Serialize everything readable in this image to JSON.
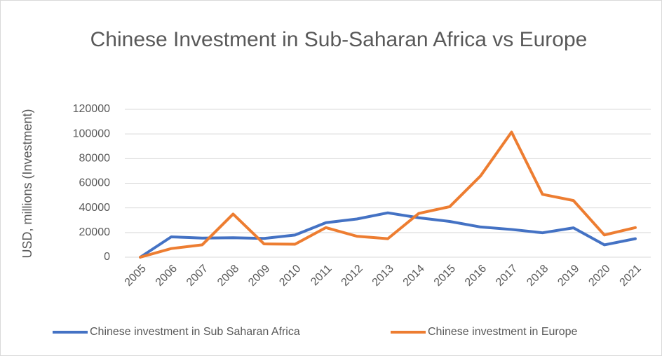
{
  "chart_data": {
    "type": "line",
    "title": "Chinese Investment in Sub-Saharan Africa vs Europe",
    "y_label": "USD, millions (Investment)",
    "categories": [
      "2005",
      "2006",
      "2007",
      "2008",
      "2009",
      "2010",
      "2011",
      "2012",
      "2013",
      "2014",
      "2015",
      "2016",
      "2017",
      "2018",
      "2019",
      "2020",
      "2021"
    ],
    "series": [
      {
        "name": "Chinese investment in Sub Saharan Africa",
        "color": "#4472c4",
        "values": [
          0,
          16500,
          15500,
          15800,
          15200,
          18000,
          28000,
          31000,
          36000,
          32000,
          29000,
          24500,
          22500,
          19800,
          23800,
          10000,
          15000
        ]
      },
      {
        "name": "Chinese investment in Europe",
        "color": "#ed7d31",
        "values": [
          0,
          7000,
          10000,
          35000,
          10800,
          10500,
          24000,
          17000,
          15000,
          35500,
          41000,
          66000,
          101500,
          51000,
          46000,
          18000,
          24000
        ]
      }
    ],
    "ylim": [
      0,
      120000
    ],
    "yticks": [
      0,
      20000,
      40000,
      60000,
      80000,
      100000,
      120000
    ],
    "grid": true,
    "legend": "bottom"
  }
}
